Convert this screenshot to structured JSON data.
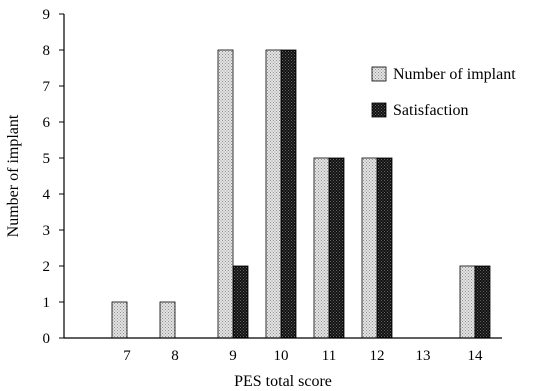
{
  "chart_data": {
    "type": "bar",
    "xlabel": "PES total score",
    "ylabel": "Number of implant",
    "ylim": [
      0,
      9
    ],
    "yticks": [
      "0",
      "1",
      "2",
      "3",
      "4",
      "5",
      "6",
      "7",
      "8",
      "9"
    ],
    "categories": [
      "7",
      "8",
      "9",
      "10",
      "11",
      "12",
      "13",
      "14"
    ],
    "series": [
      {
        "name": "Number of implant",
        "values": [
          1,
          1,
          8,
          8,
          5,
          5,
          0,
          2
        ],
        "color": "#d4d4d4",
        "pattern": "light-dotted"
      },
      {
        "name": "Satisfaction",
        "values": [
          0,
          0,
          2,
          8,
          5,
          5,
          0,
          2
        ],
        "color": "#1a1a1a",
        "pattern": "dark-dotted"
      }
    ],
    "grid": false,
    "legend_position": "right"
  }
}
